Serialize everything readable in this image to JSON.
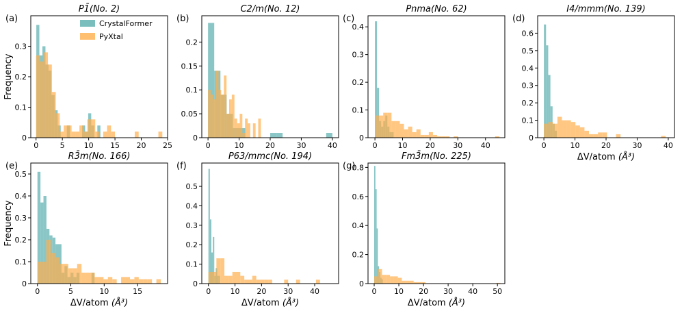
{
  "figure": {
    "legend": [
      {
        "name": "CrystalFormer",
        "color": "#5aaeae"
      },
      {
        "name": "PyXtal",
        "color": "#ffaf4d"
      }
    ],
    "ylabel": "Frequency",
    "xlabel_main": "ΔV/atom",
    "xlabel_unit": "(Å³)"
  },
  "chart_data": [
    {
      "type": "bar",
      "panel": "(a)",
      "title_main": "P1̄",
      "title_no": "(No. 2)",
      "xlim": [
        -1,
        25
      ],
      "ylim": [
        0,
        0.4
      ],
      "xticks": [
        0,
        5,
        10,
        15,
        20,
        25
      ],
      "yticks": [
        0,
        0.1,
        0.2,
        0.3
      ],
      "show_xlabel": false,
      "show_ylabel": true,
      "legend": true,
      "series": [
        {
          "name": "CrystalFormer",
          "bin_width": 0.58,
          "x": [
            0.05,
            0.63,
            1.21,
            1.79,
            2.37,
            2.95,
            3.53,
            4.11,
            4.69,
            5.27,
            5.85,
            6.43,
            7.01,
            7.59,
            8.17,
            8.75,
            9.33,
            9.91,
            10.49,
            11.07,
            11.65
          ],
          "y": [
            0.37,
            0.27,
            0.3,
            0.24,
            0.22,
            0.14,
            0.09,
            0.04,
            0,
            0,
            0.04,
            0,
            0,
            0,
            0,
            0.04,
            0.02,
            0.08,
            0.04,
            0,
            0.04
          ]
        },
        {
          "name": "PyXtal",
          "bin_width": 0.75,
          "x": [
            0,
            0.75,
            1.5,
            2.25,
            3.0,
            3.75,
            4.5,
            5.25,
            6.0,
            6.75,
            7.5,
            8.25,
            9.0,
            9.75,
            10.5,
            11.25,
            12.0,
            12.75,
            13.5,
            14.25,
            15.0,
            15.75,
            16.5,
            17.25,
            18.0,
            18.75,
            19.5,
            20.25,
            21.0,
            21.75,
            22.5,
            23.25
          ],
          "y": [
            0.27,
            0.25,
            0.28,
            0.24,
            0.15,
            0.08,
            0.02,
            0.04,
            0.04,
            0.02,
            0.02,
            0.04,
            0.02,
            0.06,
            0.06,
            0.02,
            0,
            0.02,
            0.04,
            0.02,
            0,
            0,
            0,
            0,
            0,
            0.02,
            0,
            0,
            0,
            0,
            0,
            0.02
          ]
        }
      ]
    },
    {
      "type": "bar",
      "panel": "(b)",
      "title_main": "C2/m",
      "title_no": "(No. 12)",
      "xlim": [
        -2,
        42
      ],
      "ylim": [
        0,
        0.255
      ],
      "xticks": [
        0,
        10,
        20,
        30,
        40
      ],
      "yticks": [
        0,
        0.05,
        0.1,
        0.15,
        0.2
      ],
      "show_xlabel": false,
      "show_ylabel": false,
      "legend": false,
      "series": [
        {
          "name": "CrystalFormer",
          "bin_width": 2.0,
          "x": [
            0,
            2,
            4,
            6,
            8,
            10,
            12,
            14,
            16,
            18,
            20,
            22,
            24,
            26,
            28,
            30,
            32,
            34,
            36,
            38
          ],
          "y": [
            0.24,
            0.14,
            0.09,
            0.05,
            0.02,
            0.02,
            0,
            0,
            0,
            0,
            0.01,
            0.01,
            0,
            0,
            0,
            0,
            0,
            0,
            0,
            0.01
          ]
        },
        {
          "name": "PyXtal",
          "bin_width": 0.85,
          "x": [
            0,
            0.85,
            1.7,
            2.55,
            3.4,
            4.25,
            5.1,
            5.95,
            6.8,
            7.65,
            8.5,
            9.35,
            10.2,
            11.05,
            11.9,
            12.75,
            13.6,
            14.45,
            15.3,
            16.15
          ],
          "y": [
            0.1,
            0.09,
            0.08,
            0.14,
            0.1,
            0.09,
            0.13,
            0.05,
            0.08,
            0.09,
            0.04,
            0.03,
            0.05,
            0.01,
            0.04,
            0.03,
            0,
            0.03,
            0,
            0.04
          ]
        }
      ]
    },
    {
      "type": "bar",
      "panel": "(c)",
      "title_main": "Pnma",
      "title_no": "(No. 62)",
      "xlim": [
        -2.5,
        47
      ],
      "ylim": [
        0,
        0.44
      ],
      "xticks": [
        0,
        10,
        20,
        30,
        40
      ],
      "yticks": [
        0,
        0.1,
        0.2,
        0.3,
        0.4
      ],
      "show_xlabel": false,
      "show_ylabel": false,
      "legend": false,
      "series": [
        {
          "name": "CrystalFormer",
          "bin_width": 0.75,
          "x": [
            0,
            0.75,
            1.5,
            2.25,
            3.0,
            3.75,
            4.5,
            5.25,
            6.0
          ],
          "y": [
            0.42,
            0.18,
            0.06,
            0.04,
            0.06,
            0.08,
            0.04,
            0.02,
            0.02
          ]
        },
        {
          "name": "PyXtal",
          "bin_width": 1.5,
          "x": [
            0,
            1.5,
            3.0,
            4.5,
            6.0,
            7.5,
            9.0,
            10.5,
            12.0,
            13.5,
            15.0,
            16.5,
            18.0,
            19.5,
            21.0,
            22.5,
            24.0,
            25.5,
            27.0,
            28.5,
            30.0,
            31.5,
            33.0,
            34.5,
            36.0,
            37.5,
            39.0,
            40.5,
            42.0,
            43.5
          ],
          "y": [
            0.08,
            0.08,
            0.09,
            0.09,
            0.06,
            0.06,
            0.05,
            0.03,
            0.04,
            0.02,
            0.03,
            0.01,
            0.01,
            0.02,
            0.01,
            0.005,
            0.005,
            0.005,
            0,
            0.005,
            0,
            0,
            0,
            0,
            0,
            0,
            0,
            0,
            0,
            0.005
          ]
        }
      ]
    },
    {
      "type": "bar",
      "panel": "(d)",
      "title_main": "I4/mmm",
      "title_no": "(No. 139)",
      "xlim": [
        -2,
        42
      ],
      "ylim": [
        0,
        0.7
      ],
      "xticks": [
        0,
        10,
        20,
        30,
        40
      ],
      "yticks": [
        0,
        0.1,
        0.2,
        0.3,
        0.4,
        0.5,
        0.6
      ],
      "show_xlabel": true,
      "show_ylabel": false,
      "legend": false,
      "series": [
        {
          "name": "CrystalFormer",
          "bin_width": 0.7,
          "x": [
            0,
            0.7,
            1.4,
            2.1,
            2.8,
            3.5
          ],
          "y": [
            0.65,
            0.53,
            0.36,
            0.18,
            0.08,
            0.04
          ]
        },
        {
          "name": "PyXtal",
          "bin_width": 1.45,
          "x": [
            0,
            1.45,
            2.9,
            4.35,
            5.8,
            7.25,
            8.7,
            10.15,
            11.6,
            13.05,
            14.5,
            15.95,
            17.4,
            18.85,
            20.3,
            21.75,
            23.2,
            24.65,
            26.1,
            27.55,
            29.0,
            30.45,
            31.9,
            33.35,
            34.8,
            36.25,
            37.7
          ],
          "y": [
            0.08,
            0.09,
            0.08,
            0.12,
            0.1,
            0.1,
            0.09,
            0.07,
            0.06,
            0.04,
            0.02,
            0.02,
            0.03,
            0.03,
            0,
            0,
            0.02,
            0,
            0,
            0,
            0,
            0,
            0,
            0,
            0,
            0,
            0.01
          ]
        }
      ]
    },
    {
      "type": "bar",
      "panel": "(e)",
      "title_main": "R3̄m",
      "title_no": "(No. 166)",
      "xlim": [
        -1,
        19.5
      ],
      "ylim": [
        0,
        0.55
      ],
      "xticks": [
        0,
        5,
        10,
        15
      ],
      "yticks": [
        0,
        0.1,
        0.2,
        0.3,
        0.4,
        0.5
      ],
      "show_xlabel": true,
      "show_ylabel": true,
      "legend": false,
      "series": [
        {
          "name": "CrystalFormer",
          "bin_width": 0.45,
          "x": [
            0,
            0.45,
            0.9,
            1.35,
            1.8,
            2.25,
            2.7,
            3.15,
            3.6,
            4.05,
            4.5,
            4.95,
            5.4,
            5.85,
            6.3,
            6.75,
            7.2,
            7.65,
            8.1,
            8.55,
            9.0
          ],
          "y": [
            0.51,
            0.37,
            0.4,
            0.25,
            0.22,
            0.21,
            0.18,
            0.18,
            0.05,
            0.08,
            0.03,
            0.05,
            0.03,
            0.05,
            0,
            0,
            0,
            0,
            0.05,
            0,
            0
          ]
        },
        {
          "name": "PyXtal",
          "bin_width": 0.66,
          "x": [
            0,
            0.66,
            1.32,
            1.98,
            2.64,
            3.3,
            3.96,
            4.62,
            5.28,
            5.94,
            6.6,
            7.26,
            7.92,
            8.58,
            9.24,
            9.9,
            10.56,
            11.22,
            11.88,
            12.54,
            13.2,
            13.86,
            14.52,
            15.18,
            15.84,
            16.5,
            17.16,
            17.82
          ],
          "y": [
            0.1,
            0.1,
            0.2,
            0.14,
            0.12,
            0.09,
            0.09,
            0.07,
            0.07,
            0.09,
            0.05,
            0.05,
            0.05,
            0.03,
            0.03,
            0.02,
            0.03,
            0.02,
            0,
            0.03,
            0.03,
            0.02,
            0.03,
            0.02,
            0.02,
            0.02,
            0,
            0.02
          ]
        }
      ]
    },
    {
      "type": "bar",
      "panel": "(f)",
      "title_main": "P63/mmc",
      "title_no": "(No. 194)",
      "xlim": [
        -2.5,
        49
      ],
      "ylim": [
        0,
        0.62
      ],
      "xticks": [
        0,
        10,
        20,
        30,
        40
      ],
      "yticks": [
        0,
        0.1,
        0.2,
        0.3,
        0.4,
        0.5
      ],
      "show_xlabel": true,
      "show_ylabel": false,
      "legend": false,
      "series": [
        {
          "name": "CrystalFormer",
          "bin_width": 0.55,
          "x": [
            0,
            0.55,
            1.1,
            1.65,
            2.2,
            2.75,
            3.3,
            3.85
          ],
          "y": [
            0.59,
            0.33,
            0.16,
            0.24,
            0.04,
            0.08,
            0.04,
            0.04
          ]
        },
        {
          "name": "PyXtal",
          "bin_width": 1.5,
          "x": [
            0,
            1.5,
            3.0,
            4.5,
            6.0,
            7.5,
            9.0,
            10.5,
            12.0,
            13.5,
            15.0,
            16.5,
            18.0,
            19.5,
            21.0,
            22.5,
            24.0,
            25.5,
            27.0,
            28.5,
            30.0,
            31.5,
            33.0,
            34.5,
            36.0,
            37.5,
            39.0,
            40.5
          ],
          "y": [
            0.06,
            0.06,
            0.13,
            0.13,
            0.04,
            0.04,
            0.06,
            0.06,
            0.04,
            0.02,
            0.02,
            0.04,
            0.02,
            0.02,
            0.02,
            0.02,
            0,
            0,
            0,
            0.02,
            0,
            0,
            0.02,
            0,
            0,
            0,
            0,
            0.02
          ]
        }
      ]
    },
    {
      "type": "bar",
      "panel": "(g)",
      "title_main": "Fm3̄m",
      "title_no": "(No. 225)",
      "xlim": [
        -2.5,
        53
      ],
      "ylim": [
        0,
        0.83
      ],
      "xticks": [
        0,
        10,
        20,
        30,
        40,
        50
      ],
      "yticks": [
        0,
        0.2,
        0.4,
        0.6,
        0.8
      ],
      "show_xlabel": true,
      "show_ylabel": false,
      "legend": false,
      "series": [
        {
          "name": "CrystalFormer",
          "bin_width": 0.5,
          "x": [
            0,
            0.5,
            1.0,
            1.5,
            2.0,
            2.5,
            3.0
          ],
          "y": [
            0.81,
            0.65,
            0.38,
            0.12,
            0.08,
            0.04,
            0.03
          ]
        },
        {
          "name": "PyXtal",
          "bin_width": 1.6,
          "x": [
            0,
            1.6,
            3.2,
            4.8,
            6.4,
            8.0,
            9.6,
            11.2,
            12.8,
            14.4,
            16.0,
            17.6,
            19.2,
            20.8,
            22.4,
            24.0,
            25.6,
            27.2,
            28.8,
            30.4,
            32.0,
            33.6,
            35.2,
            36.8,
            38.4,
            40.0,
            41.6,
            43.2,
            44.8,
            46.4,
            48.0,
            49.6
          ],
          "y": [
            0.05,
            0.1,
            0.06,
            0.06,
            0.05,
            0.05,
            0.04,
            0.02,
            0.02,
            0.02,
            0.01,
            0.01,
            0.01,
            0,
            0,
            0,
            0,
            0,
            0,
            0,
            0,
            0,
            0,
            0,
            0,
            0,
            0,
            0,
            0,
            0,
            0,
            0.005
          ]
        }
      ]
    }
  ]
}
